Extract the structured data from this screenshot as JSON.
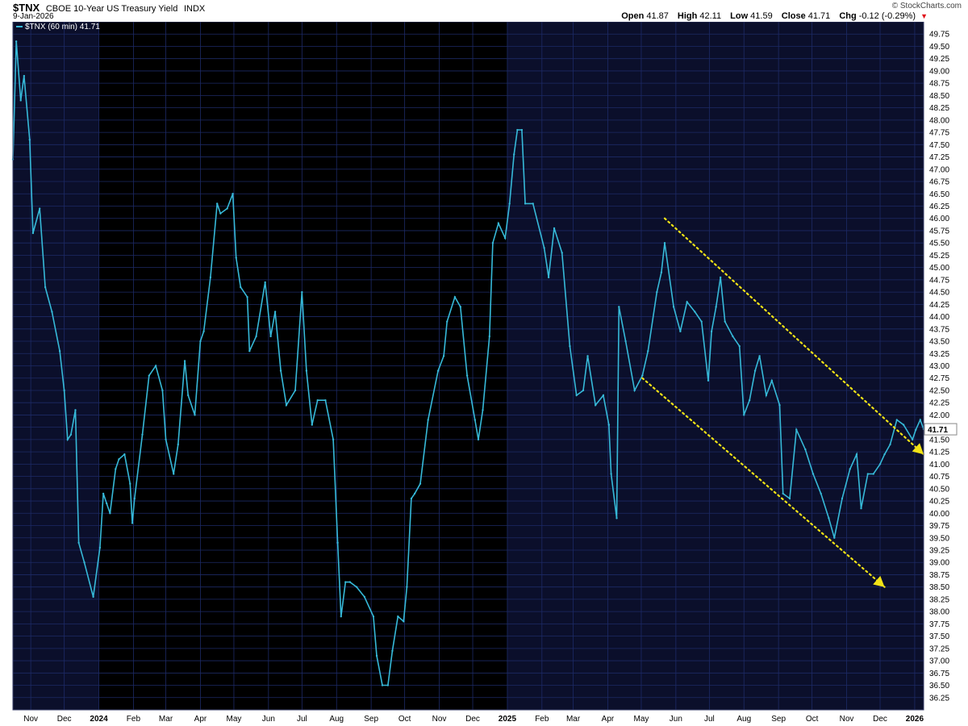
{
  "header": {
    "symbol": "$TNX",
    "name": "CBOE 10-Year US Treasury Yield",
    "exchange": "INDX",
    "date": "9-Jan-2026",
    "watermark": "© StockCharts.com",
    "open_label": "Open",
    "open": "41.87",
    "high_label": "High",
    "high": "42.11",
    "low_label": "Low",
    "low": "41.59",
    "close_label": "Close",
    "close": "41.71",
    "chg_label": "Chg",
    "chg": "-0.12 (-0.29%)",
    "down_arrow": "▼"
  },
  "legend": {
    "text": "$TNX (60 min) 41.71"
  },
  "colors": {
    "price_line": "#36b9d8",
    "trendline": "#f2e316",
    "panel_dark": "#000000",
    "panel_navy": "#0b0f2b",
    "grid": "#1d2a66",
    "down": "#e0101a"
  },
  "chart_data": {
    "type": "line",
    "title": "$TNX CBOE 10-Year US Treasury Yield INDX",
    "series": [
      {
        "name": "$TNX (60 min)",
        "x": [
          "2023-10-16",
          "2023-10-19",
          "2023-10-23",
          "2023-10-26",
          "2023-10-31",
          "2023-11-03",
          "2023-11-09",
          "2023-11-14",
          "2023-11-20",
          "2023-11-27",
          "2023-12-01",
          "2023-12-04",
          "2023-12-07",
          "2023-12-11",
          "2023-12-14",
          "2023-12-19",
          "2023-12-27",
          "2024-01-02",
          "2024-01-05",
          "2024-01-08",
          "2024-01-11",
          "2024-01-16",
          "2024-01-19",
          "2024-01-24",
          "2024-01-29",
          "2024-01-31",
          "2024-02-02",
          "2024-02-09",
          "2024-02-15",
          "2024-02-21",
          "2024-02-27",
          "2024-03-01",
          "2024-03-08",
          "2024-03-12",
          "2024-03-18",
          "2024-03-21",
          "2024-03-27",
          "2024-04-01",
          "2024-04-04",
          "2024-04-10",
          "2024-04-16",
          "2024-04-19",
          "2024-04-25",
          "2024-04-30",
          "2024-05-03",
          "2024-05-07",
          "2024-05-13",
          "2024-05-15",
          "2024-05-21",
          "2024-05-29",
          "2024-06-03",
          "2024-06-07",
          "2024-06-12",
          "2024-06-17",
          "2024-06-25",
          "2024-07-01",
          "2024-07-05",
          "2024-07-10",
          "2024-07-15",
          "2024-07-22",
          "2024-07-29",
          "2024-08-02",
          "2024-08-05",
          "2024-08-09",
          "2024-08-13",
          "2024-08-19",
          "2024-08-26",
          "2024-09-03",
          "2024-09-06",
          "2024-09-11",
          "2024-09-16",
          "2024-09-20",
          "2024-09-25",
          "2024-09-30",
          "2024-10-03",
          "2024-10-07",
          "2024-10-10",
          "2024-10-15",
          "2024-10-22",
          "2024-10-31",
          "2024-11-05",
          "2024-11-08",
          "2024-11-15",
          "2024-11-20",
          "2024-11-26",
          "2024-12-03",
          "2024-12-06",
          "2024-12-10",
          "2024-12-16",
          "2024-12-19",
          "2024-12-24",
          "2024-12-30",
          "2025-01-03",
          "2025-01-07",
          "2025-01-10",
          "2025-01-14",
          "2025-01-17",
          "2025-01-24",
          "2025-02-03",
          "2025-02-07",
          "2025-02-12",
          "2025-02-19",
          "2025-02-26",
          "2025-03-04",
          "2025-03-10",
          "2025-03-14",
          "2025-03-21",
          "2025-03-28",
          "2025-04-02",
          "2025-04-04",
          "2025-04-09",
          "2025-04-11",
          "2025-04-17",
          "2025-04-25",
          "2025-05-02",
          "2025-05-07",
          "2025-05-15",
          "2025-05-19",
          "2025-05-22",
          "2025-05-30",
          "2025-06-05",
          "2025-06-11",
          "2025-06-18",
          "2025-06-24",
          "2025-06-30",
          "2025-07-03",
          "2025-07-07",
          "2025-07-11",
          "2025-07-15",
          "2025-07-22",
          "2025-07-28",
          "2025-08-01",
          "2025-08-06",
          "2025-08-11",
          "2025-08-15",
          "2025-08-21",
          "2025-08-26",
          "2025-09-02",
          "2025-09-05",
          "2025-09-11",
          "2025-09-17",
          "2025-09-25",
          "2025-10-02",
          "2025-10-09",
          "2025-10-16",
          "2025-10-21",
          "2025-10-28",
          "2025-11-04",
          "2025-11-10",
          "2025-11-14",
          "2025-11-20",
          "2025-11-25",
          "2025-12-01",
          "2025-12-05",
          "2025-12-10",
          "2025-12-16",
          "2025-12-22",
          "2025-12-30",
          "2026-01-02",
          "2026-01-06",
          "2026-01-09"
        ],
        "y": [
          47.2,
          49.6,
          48.4,
          48.9,
          47.6,
          45.7,
          46.2,
          44.6,
          44.1,
          43.3,
          42.5,
          41.5,
          41.6,
          42.1,
          39.4,
          39.0,
          38.3,
          39.3,
          40.4,
          40.2,
          40.0,
          40.9,
          41.1,
          41.2,
          40.6,
          39.8,
          40.3,
          41.6,
          42.8,
          43.0,
          42.5,
          41.5,
          40.8,
          41.4,
          43.1,
          42.4,
          42.0,
          43.5,
          43.7,
          44.8,
          46.3,
          46.1,
          46.2,
          46.5,
          45.2,
          44.6,
          44.4,
          43.3,
          43.6,
          44.7,
          43.6,
          44.1,
          42.9,
          42.2,
          42.5,
          44.5,
          42.9,
          41.8,
          42.3,
          42.3,
          41.5,
          39.4,
          37.9,
          38.6,
          38.6,
          38.5,
          38.3,
          37.9,
          37.1,
          36.5,
          36.5,
          37.2,
          37.9,
          37.8,
          38.5,
          40.3,
          40.4,
          40.6,
          41.9,
          42.9,
          43.2,
          43.9,
          44.4,
          44.2,
          42.8,
          41.9,
          41.5,
          42.1,
          43.6,
          45.5,
          45.9,
          45.6,
          46.3,
          47.3,
          47.8,
          47.8,
          46.3,
          46.3,
          45.4,
          44.8,
          45.8,
          45.3,
          43.4,
          42.4,
          42.5,
          43.2,
          42.2,
          42.4,
          41.8,
          40.8,
          39.9,
          44.2,
          43.5,
          42.5,
          42.8,
          43.3,
          44.5,
          44.9,
          45.5,
          44.2,
          43.7,
          44.3,
          44.1,
          43.9,
          42.7,
          43.7,
          44.2,
          44.8,
          43.9,
          43.6,
          43.4,
          42.0,
          42.3,
          42.9,
          43.2,
          42.4,
          42.7,
          42.2,
          40.4,
          40.3,
          41.7,
          41.3,
          40.8,
          40.4,
          39.9,
          39.5,
          40.3,
          40.9,
          41.2,
          40.1,
          40.8,
          40.8,
          41.0,
          41.2,
          41.4,
          41.9,
          41.8,
          41.5,
          41.7,
          41.9,
          41.71
        ],
        "color": "#36b9d8"
      }
    ],
    "annotations": [
      {
        "type": "trendline-upper",
        "x": [
          "2025-05-22",
          "2026-01-09"
        ],
        "y": [
          46.0,
          41.2
        ],
        "color": "#f2e316"
      },
      {
        "type": "trendline-lower",
        "x": [
          "2025-05-02",
          "2025-12-05"
        ],
        "y": [
          42.75,
          38.5
        ],
        "color": "#f2e316"
      }
    ],
    "xlim": [
      "2023-10-16",
      "2026-01-09"
    ],
    "ylim": [
      36.0,
      50.0
    ],
    "y_ticks": [
      "36.25",
      "36.50",
      "36.75",
      "37.00",
      "37.25",
      "37.50",
      "37.75",
      "38.00",
      "38.25",
      "38.50",
      "38.75",
      "39.00",
      "39.25",
      "39.50",
      "39.75",
      "40.00",
      "40.25",
      "40.50",
      "40.75",
      "41.00",
      "41.25",
      "41.50",
      "41.75",
      "42.00",
      "42.25",
      "42.50",
      "42.75",
      "43.00",
      "43.25",
      "43.50",
      "43.75",
      "44.00",
      "44.25",
      "44.50",
      "44.75",
      "45.00",
      "45.25",
      "45.50",
      "45.75",
      "46.00",
      "46.25",
      "46.50",
      "46.75",
      "47.00",
      "47.25",
      "47.50",
      "47.75",
      "48.00",
      "48.25",
      "48.50",
      "48.75",
      "49.00",
      "49.25",
      "49.50",
      "49.75"
    ],
    "x_ticks": [
      {
        "label": "Nov",
        "date": "2023-11-01"
      },
      {
        "label": "Dec",
        "date": "2023-12-01"
      },
      {
        "label": "2024",
        "date": "2024-01-01",
        "year": true
      },
      {
        "label": "Feb",
        "date": "2024-02-01"
      },
      {
        "label": "Mar",
        "date": "2024-03-01"
      },
      {
        "label": "Apr",
        "date": "2024-04-01"
      },
      {
        "label": "May",
        "date": "2024-05-01"
      },
      {
        "label": "Jun",
        "date": "2024-06-01"
      },
      {
        "label": "Jul",
        "date": "2024-07-01"
      },
      {
        "label": "Aug",
        "date": "2024-08-01"
      },
      {
        "label": "Sep",
        "date": "2024-09-01"
      },
      {
        "label": "Oct",
        "date": "2024-10-01"
      },
      {
        "label": "Nov",
        "date": "2024-11-01"
      },
      {
        "label": "Dec",
        "date": "2024-12-01"
      },
      {
        "label": "2025",
        "date": "2025-01-01",
        "year": true
      },
      {
        "label": "Feb",
        "date": "2025-02-01"
      },
      {
        "label": "Mar",
        "date": "2025-03-01"
      },
      {
        "label": "Apr",
        "date": "2025-04-01"
      },
      {
        "label": "May",
        "date": "2025-05-01"
      },
      {
        "label": "Jun",
        "date": "2025-06-01"
      },
      {
        "label": "Jul",
        "date": "2025-07-01"
      },
      {
        "label": "Aug",
        "date": "2025-08-01"
      },
      {
        "label": "Sep",
        "date": "2025-09-01"
      },
      {
        "label": "Oct",
        "date": "2025-10-01"
      },
      {
        "label": "Nov",
        "date": "2025-11-01"
      },
      {
        "label": "Dec",
        "date": "2025-12-01"
      },
      {
        "label": "2026",
        "date": "2026-01-01",
        "year": true
      }
    ],
    "last_value_tag": "41.71",
    "grid": true,
    "xlabel": "",
    "ylabel": ""
  }
}
